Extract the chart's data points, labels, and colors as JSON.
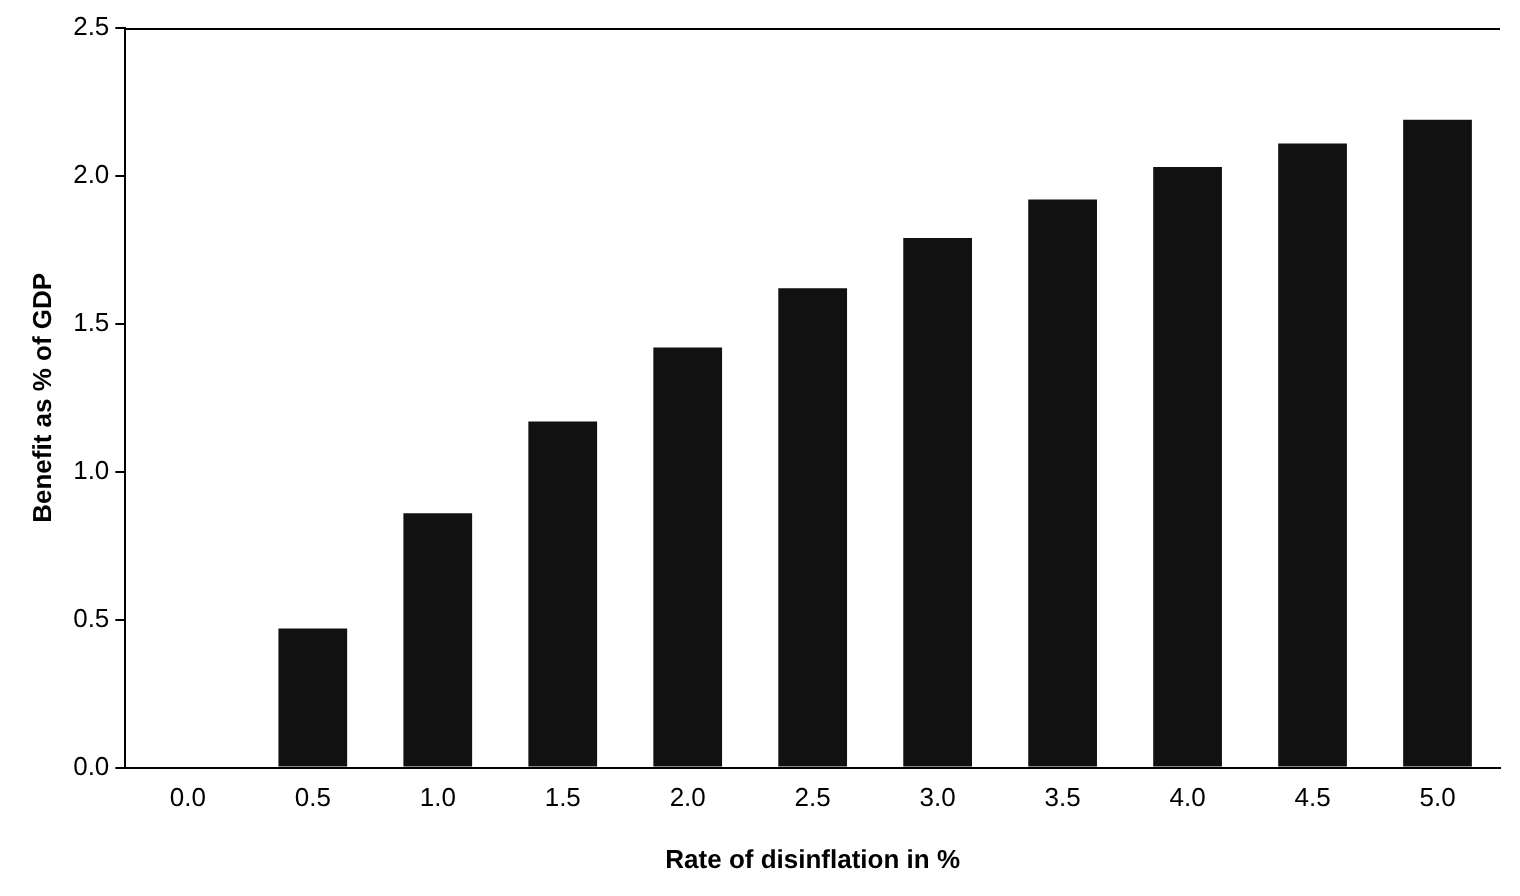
{
  "chart_data": {
    "type": "bar",
    "xlabel": "Rate of disinflation in %",
    "ylabel": "Benefit as % of GDP",
    "categories": [
      "0.0",
      "0.5",
      "1.0",
      "1.5",
      "2.0",
      "2.5",
      "3.0",
      "3.5",
      "4.0",
      "4.5",
      "5.0"
    ],
    "values": [
      0,
      0.47,
      0.86,
      1.17,
      1.42,
      1.62,
      1.79,
      1.92,
      2.03,
      2.11,
      2.19
    ],
    "color": "#111111",
    "ylim": [
      0,
      2.5
    ],
    "yticks": [
      {
        "value": 0,
        "label": "0.0"
      },
      {
        "value": 0.5,
        "label": "0.5"
      },
      {
        "value": 1,
        "label": "1.0"
      },
      {
        "value": 1.5,
        "label": "1.5"
      },
      {
        "value": 2,
        "label": "2.0"
      },
      {
        "value": 2.5,
        "label": "2.5"
      }
    ],
    "grid": false,
    "legend": false
  }
}
